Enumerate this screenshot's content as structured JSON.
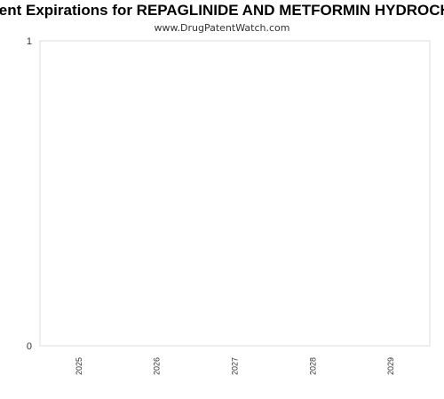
{
  "chart_data": {
    "type": "bar",
    "title": "Drug Patent Expirations for REPAGLINIDE AND METFORMIN HYDROCHLORIDE",
    "subtitle": "www.DrugPatentWatch.com",
    "categories": [
      "2025",
      "2026",
      "2027",
      "2028",
      "2029"
    ],
    "values": [
      0,
      0,
      0,
      0,
      0
    ],
    "ylim": [
      0,
      1
    ],
    "yticks": [
      "0",
      "1"
    ],
    "xlabel": "",
    "ylabel": "",
    "grid": false,
    "colors": {
      "plot_border": "#dddddd",
      "text": "#333333",
      "bar": "#4d7fc8"
    }
  }
}
